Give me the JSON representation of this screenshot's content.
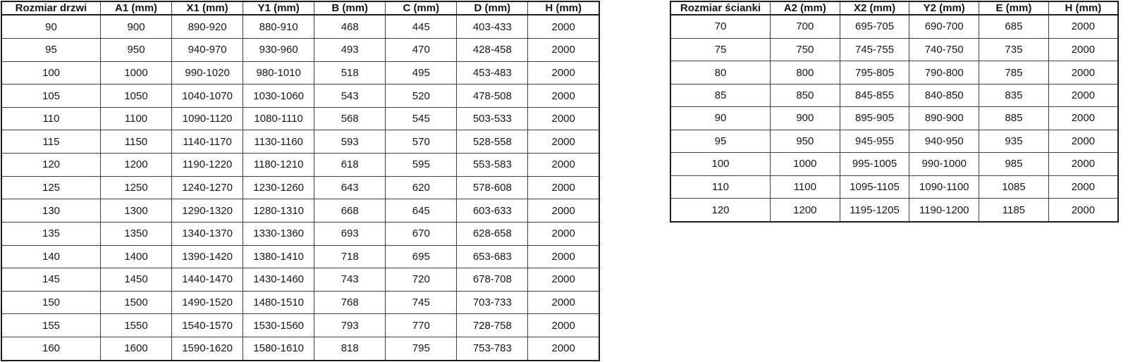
{
  "colors": {
    "background": "#ffffff",
    "inner_border": "#3e3e3e",
    "outer_border": "#1d1d1d",
    "text": "#161616"
  },
  "door_table": {
    "headers": [
      "Rozmiar drzwi",
      "A1 (mm)",
      "X1 (mm)",
      "Y1 (mm)",
      "B (mm)",
      "C (mm)",
      "D (mm)",
      "H (mm)"
    ],
    "rows": [
      [
        "90",
        "900",
        "890-920",
        "880-910",
        "468",
        "445",
        "403-433",
        "2000"
      ],
      [
        "95",
        "950",
        "940-970",
        "930-960",
        "493",
        "470",
        "428-458",
        "2000"
      ],
      [
        "100",
        "1000",
        "990-1020",
        "980-1010",
        "518",
        "495",
        "453-483",
        "2000"
      ],
      [
        "105",
        "1050",
        "1040-1070",
        "1030-1060",
        "543",
        "520",
        "478-508",
        "2000"
      ],
      [
        "110",
        "1100",
        "1090-1120",
        "1080-1110",
        "568",
        "545",
        "503-533",
        "2000"
      ],
      [
        "115",
        "1150",
        "1140-1170",
        "1130-1160",
        "593",
        "570",
        "528-558",
        "2000"
      ],
      [
        "120",
        "1200",
        "1190-1220",
        "1180-1210",
        "618",
        "595",
        "553-583",
        "2000"
      ],
      [
        "125",
        "1250",
        "1240-1270",
        "1230-1260",
        "643",
        "620",
        "578-608",
        "2000"
      ],
      [
        "130",
        "1300",
        "1290-1320",
        "1280-1310",
        "668",
        "645",
        "603-633",
        "2000"
      ],
      [
        "135",
        "1350",
        "1340-1370",
        "1330-1360",
        "693",
        "670",
        "628-658",
        "2000"
      ],
      [
        "140",
        "1400",
        "1390-1420",
        "1380-1410",
        "718",
        "695",
        "653-683",
        "2000"
      ],
      [
        "145",
        "1450",
        "1440-1470",
        "1430-1460",
        "743",
        "720",
        "678-708",
        "2000"
      ],
      [
        "150",
        "1500",
        "1490-1520",
        "1480-1510",
        "768",
        "745",
        "703-733",
        "2000"
      ],
      [
        "155",
        "1550",
        "1540-1570",
        "1530-1560",
        "793",
        "770",
        "728-758",
        "2000"
      ],
      [
        "160",
        "1600",
        "1590-1620",
        "1580-1610",
        "818",
        "795",
        "753-783",
        "2000"
      ]
    ]
  },
  "wall_table": {
    "headers": [
      "Rozmiar ścianki",
      "A2 (mm)",
      "X2 (mm)",
      "Y2 (mm)",
      "E (mm)",
      "H (mm)"
    ],
    "rows": [
      [
        "70",
        "700",
        "695-705",
        "690-700",
        "685",
        "2000"
      ],
      [
        "75",
        "750",
        "745-755",
        "740-750",
        "735",
        "2000"
      ],
      [
        "80",
        "800",
        "795-805",
        "790-800",
        "785",
        "2000"
      ],
      [
        "85",
        "850",
        "845-855",
        "840-850",
        "835",
        "2000"
      ],
      [
        "90",
        "900",
        "895-905",
        "890-900",
        "885",
        "2000"
      ],
      [
        "95",
        "950",
        "945-955",
        "940-950",
        "935",
        "2000"
      ],
      [
        "100",
        "1000",
        "995-1005",
        "990-1000",
        "985",
        "2000"
      ],
      [
        "110",
        "1100",
        "1095-1105",
        "1090-1100",
        "1085",
        "2000"
      ],
      [
        "120",
        "1200",
        "1195-1205",
        "1190-1200",
        "1185",
        "2000"
      ]
    ]
  }
}
